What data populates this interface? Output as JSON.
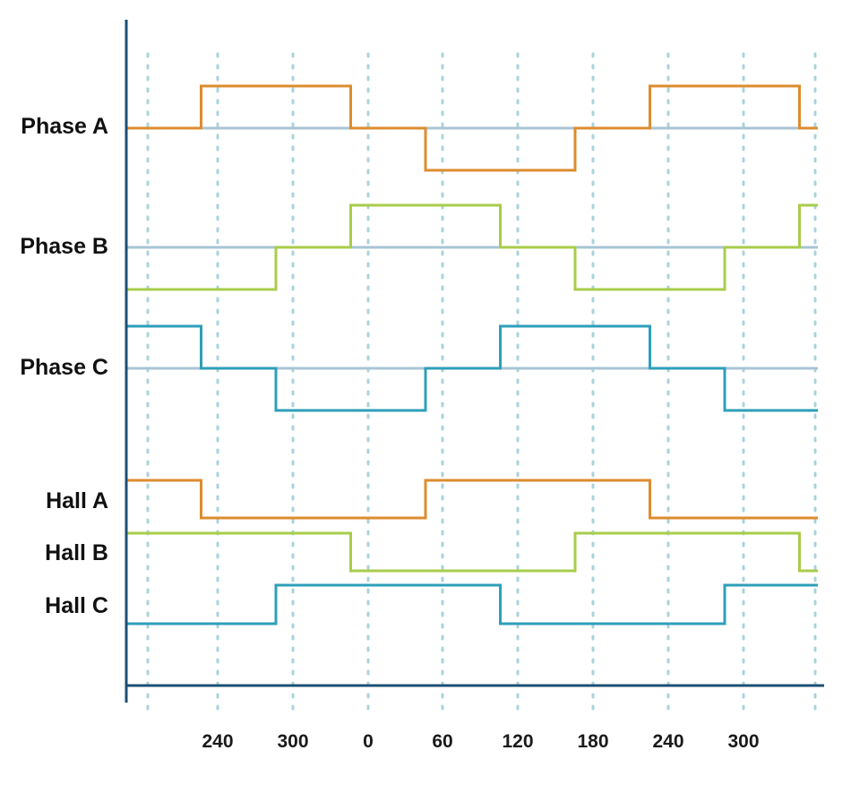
{
  "chart_data": {
    "type": "line",
    "subtype": "step",
    "title": "",
    "xlabel": "",
    "ylabel": "",
    "x_ticks": [
      "240",
      "300",
      "0",
      "60",
      "120",
      "180",
      "240",
      "300"
    ],
    "grid": "vertical-dotted",
    "colors": {
      "orange": "#dd8c2e",
      "green": "#a9cc4a",
      "blue": "#2e9fb8",
      "baseline": "#a9c4d4",
      "axis": "#1d4f73",
      "grid": "#a9d3dc"
    },
    "phases": [
      {
        "name": "Phase A",
        "color": "#dd8c2e",
        "levels": [
          0,
          1,
          1,
          0,
          -1,
          -1,
          0,
          1,
          1,
          0
        ]
      },
      {
        "name": "Phase B",
        "color": "#a9cc4a",
        "levels": [
          -1,
          -1,
          0,
          1,
          1,
          0,
          -1,
          -1,
          0,
          1
        ]
      },
      {
        "name": "Phase C",
        "color": "#2e9fb8",
        "levels": [
          1,
          0,
          -1,
          -1,
          0,
          1,
          1,
          0,
          -1,
          -1
        ]
      }
    ],
    "halls": [
      {
        "name": "Hall A",
        "color": "#dd8c2e",
        "levels": [
          1,
          0,
          0,
          0,
          1,
          1,
          1,
          0,
          0,
          0
        ]
      },
      {
        "name": "Hall B",
        "color": "#a9cc4a",
        "levels": [
          1,
          1,
          1,
          0,
          0,
          0,
          1,
          1,
          1,
          0
        ]
      },
      {
        "name": "Hall C",
        "color": "#2e9fb8",
        "levels": [
          0,
          0,
          1,
          1,
          1,
          0,
          0,
          0,
          1,
          1
        ]
      }
    ]
  }
}
